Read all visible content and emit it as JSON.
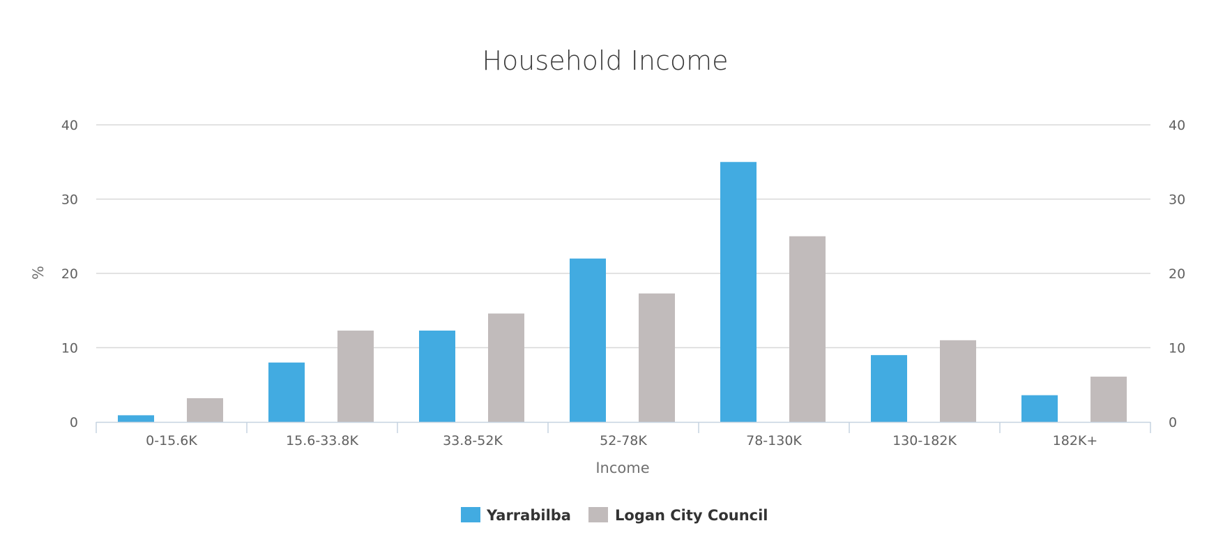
{
  "chart_data": {
    "type": "bar",
    "title": "Household Income",
    "xlabel": "Income",
    "ylabel": "%",
    "categories": [
      "0-15.6K",
      "15.6-33.8K",
      "33.8-52K",
      "52-78K",
      "78-130K",
      "130-182K",
      "182K+"
    ],
    "series": [
      {
        "name": "Yarrabilba",
        "color": "#42abe1",
        "values": [
          0.9,
          8.0,
          12.3,
          22.0,
          35.0,
          9.0,
          3.6
        ]
      },
      {
        "name": "Logan City Council",
        "color": "#c1bbbb",
        "values": [
          3.2,
          12.3,
          14.6,
          17.3,
          25.0,
          11.0,
          6.1
        ]
      }
    ],
    "ylim": [
      0,
      40
    ],
    "yticks": [
      0,
      10,
      20,
      30,
      40
    ],
    "secondary_y_axis": true,
    "grid": true,
    "legend_position": "bottom-center"
  }
}
